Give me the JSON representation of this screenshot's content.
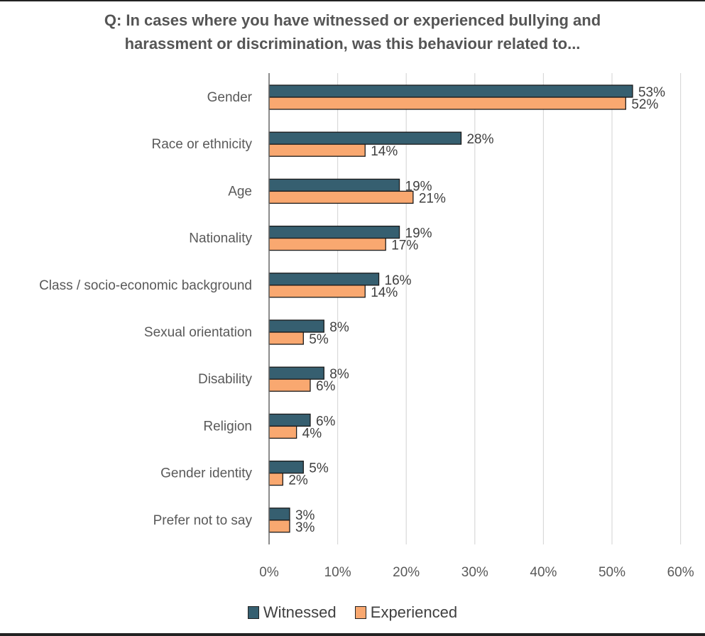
{
  "chart_data": {
    "type": "bar",
    "orientation": "horizontal",
    "title": "Q: In cases where you have witnessed or experienced bullying and harassment or discrimination, was this behaviour related to...",
    "title_lines": [
      "Q: In cases where you have witnessed or experienced bullying and",
      "harassment or discrimination, was this behaviour related to..."
    ],
    "xlabel": "",
    "ylabel": "",
    "xlim": [
      0,
      60
    ],
    "x_ticks": [
      0,
      10,
      20,
      30,
      40,
      50,
      60
    ],
    "x_tick_labels": [
      "0%",
      "10%",
      "20%",
      "30%",
      "40%",
      "50%",
      "60%"
    ],
    "grid": true,
    "legend_position": "bottom",
    "categories": [
      "Gender",
      "Race or ethnicity",
      "Age",
      "Nationality",
      "Class / socio-economic background",
      "Sexual orientation",
      "Disability",
      "Religion",
      "Gender identity",
      "Prefer not to say"
    ],
    "series": [
      {
        "name": "Witnessed",
        "color": "#365F70",
        "values": [
          53,
          28,
          19,
          19,
          16,
          8,
          8,
          6,
          5,
          3
        ],
        "labels": [
          "53%",
          "28%",
          "19%",
          "19%",
          "16%",
          "8%",
          "8%",
          "6%",
          "5%",
          "3%"
        ]
      },
      {
        "name": "Experienced",
        "color": "#F9A870",
        "values": [
          52,
          14,
          21,
          17,
          14,
          5,
          6,
          4,
          2,
          3
        ],
        "labels": [
          "52%",
          "14%",
          "21%",
          "17%",
          "14%",
          "5%",
          "6%",
          "4%",
          "2%",
          "3%"
        ]
      }
    ]
  }
}
